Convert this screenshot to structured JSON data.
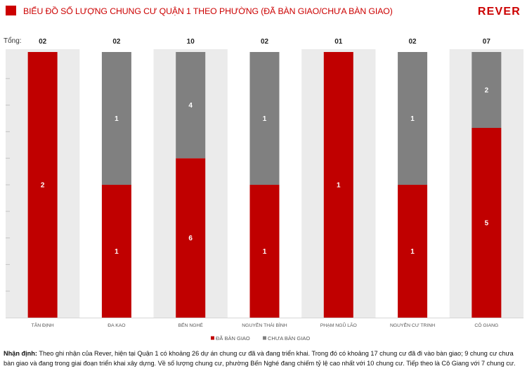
{
  "header": {
    "title": "BIỂU ĐỒ SỐ LƯỢNG CHUNG CƯ QUẬN 1 THEO PHƯỜNG (ĐÃ BÀN GIAO/CHƯA BÀN GIAO)",
    "logo": "REVER"
  },
  "colors": {
    "accent": "#cc0000",
    "band": "#ebebeb"
  },
  "chart_data": {
    "type": "bar",
    "stacking": "percent",
    "legend": "bottom",
    "totals_label": "Tổng:",
    "categories": [
      "TÂN ĐỊNH",
      "ĐA KAO",
      "BẾN NGHÉ",
      "NGUYỄN THÁI BÌNH",
      "PHẠM NGŨ LÃO",
      "NGUYỄN CƯ TRINH",
      "CÔ GIANG"
    ],
    "totals": [
      "02",
      "02",
      "10",
      "02",
      "01",
      "02",
      "07"
    ],
    "series": [
      {
        "name": "ĐÃ BÀN GIAO",
        "color": "#c00000",
        "values": [
          2,
          1,
          6,
          1,
          1,
          1,
          5
        ]
      },
      {
        "name": "CHƯA BÀN GIAO",
        "color": "#808080",
        "values": [
          0,
          1,
          4,
          1,
          0,
          1,
          2
        ]
      }
    ]
  },
  "note": {
    "label": "Nhận định:",
    "text": "Theo ghi nhận của Rever, hiện tại Quận 1 có khoảng 26 dự án chung cư đã và đang triển khai. Trong đó có khoảng 17 chung cư đã đi vào bàn giao; 9 chung cư chưa bàn giao và đang trong giai đoạn triển khai xây dựng. Về số lượng chung cư, phường Bến Nghé đang chiếm tỷ lệ cao nhất với 10 chung cư. Tiếp theo là Cô Giang với 7 chung cư."
  }
}
